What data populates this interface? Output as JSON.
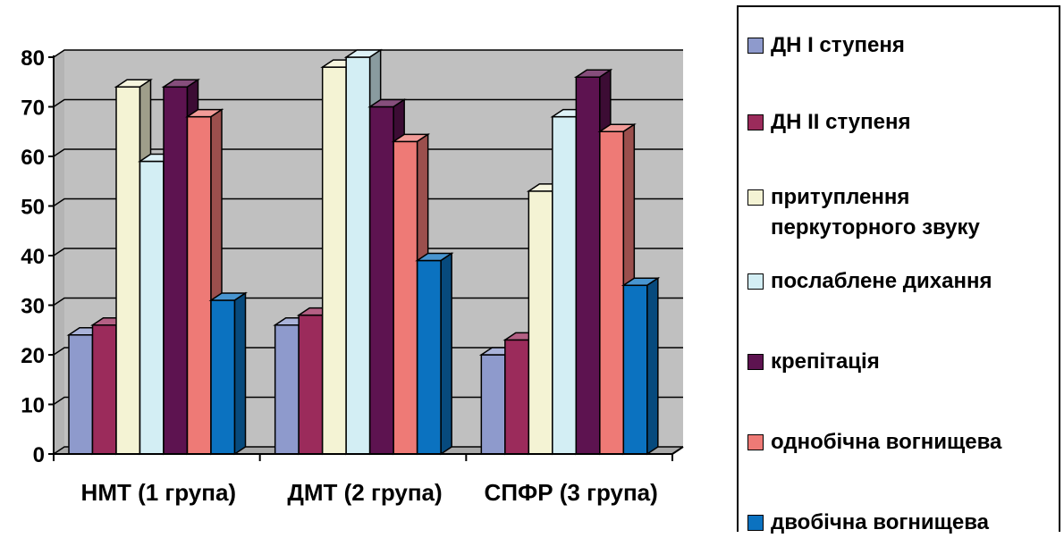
{
  "chart_data": {
    "type": "bar",
    "categories": [
      "НМТ (1 група)",
      "ДМТ (2 група)",
      "СПФР (3 група)"
    ],
    "series": [
      {
        "name": "ДН І ступеня",
        "values": [
          24,
          26,
          20
        ],
        "color": "#8E9ACC"
      },
      {
        "name": "ДН ІІ ступеня",
        "values": [
          26,
          28,
          23
        ],
        "color": "#9B2B5B"
      },
      {
        "name": "притуплення перкуторного звуку",
        "values": [
          74,
          78,
          53
        ],
        "color": "#F4F3D4"
      },
      {
        "name": "послаблене дихання",
        "values": [
          59,
          80,
          68
        ],
        "color": "#D3EEF4"
      },
      {
        "name": "крепітація",
        "values": [
          74,
          70,
          76
        ],
        "color": "#5D1350"
      },
      {
        "name": "однобічна вогнищева",
        "values": [
          68,
          63,
          65
        ],
        "color": "#EE7A76"
      },
      {
        "name": "двобічна вогнищева",
        "values": [
          31,
          39,
          34
        ],
        "color": "#0B72C0"
      }
    ],
    "yticks": [
      0,
      10,
      20,
      30,
      40,
      50,
      60,
      70,
      80
    ],
    "ylim": [
      0,
      80
    ],
    "grid": true,
    "legend_position": "right",
    "style": "3d-clustered-bar"
  }
}
